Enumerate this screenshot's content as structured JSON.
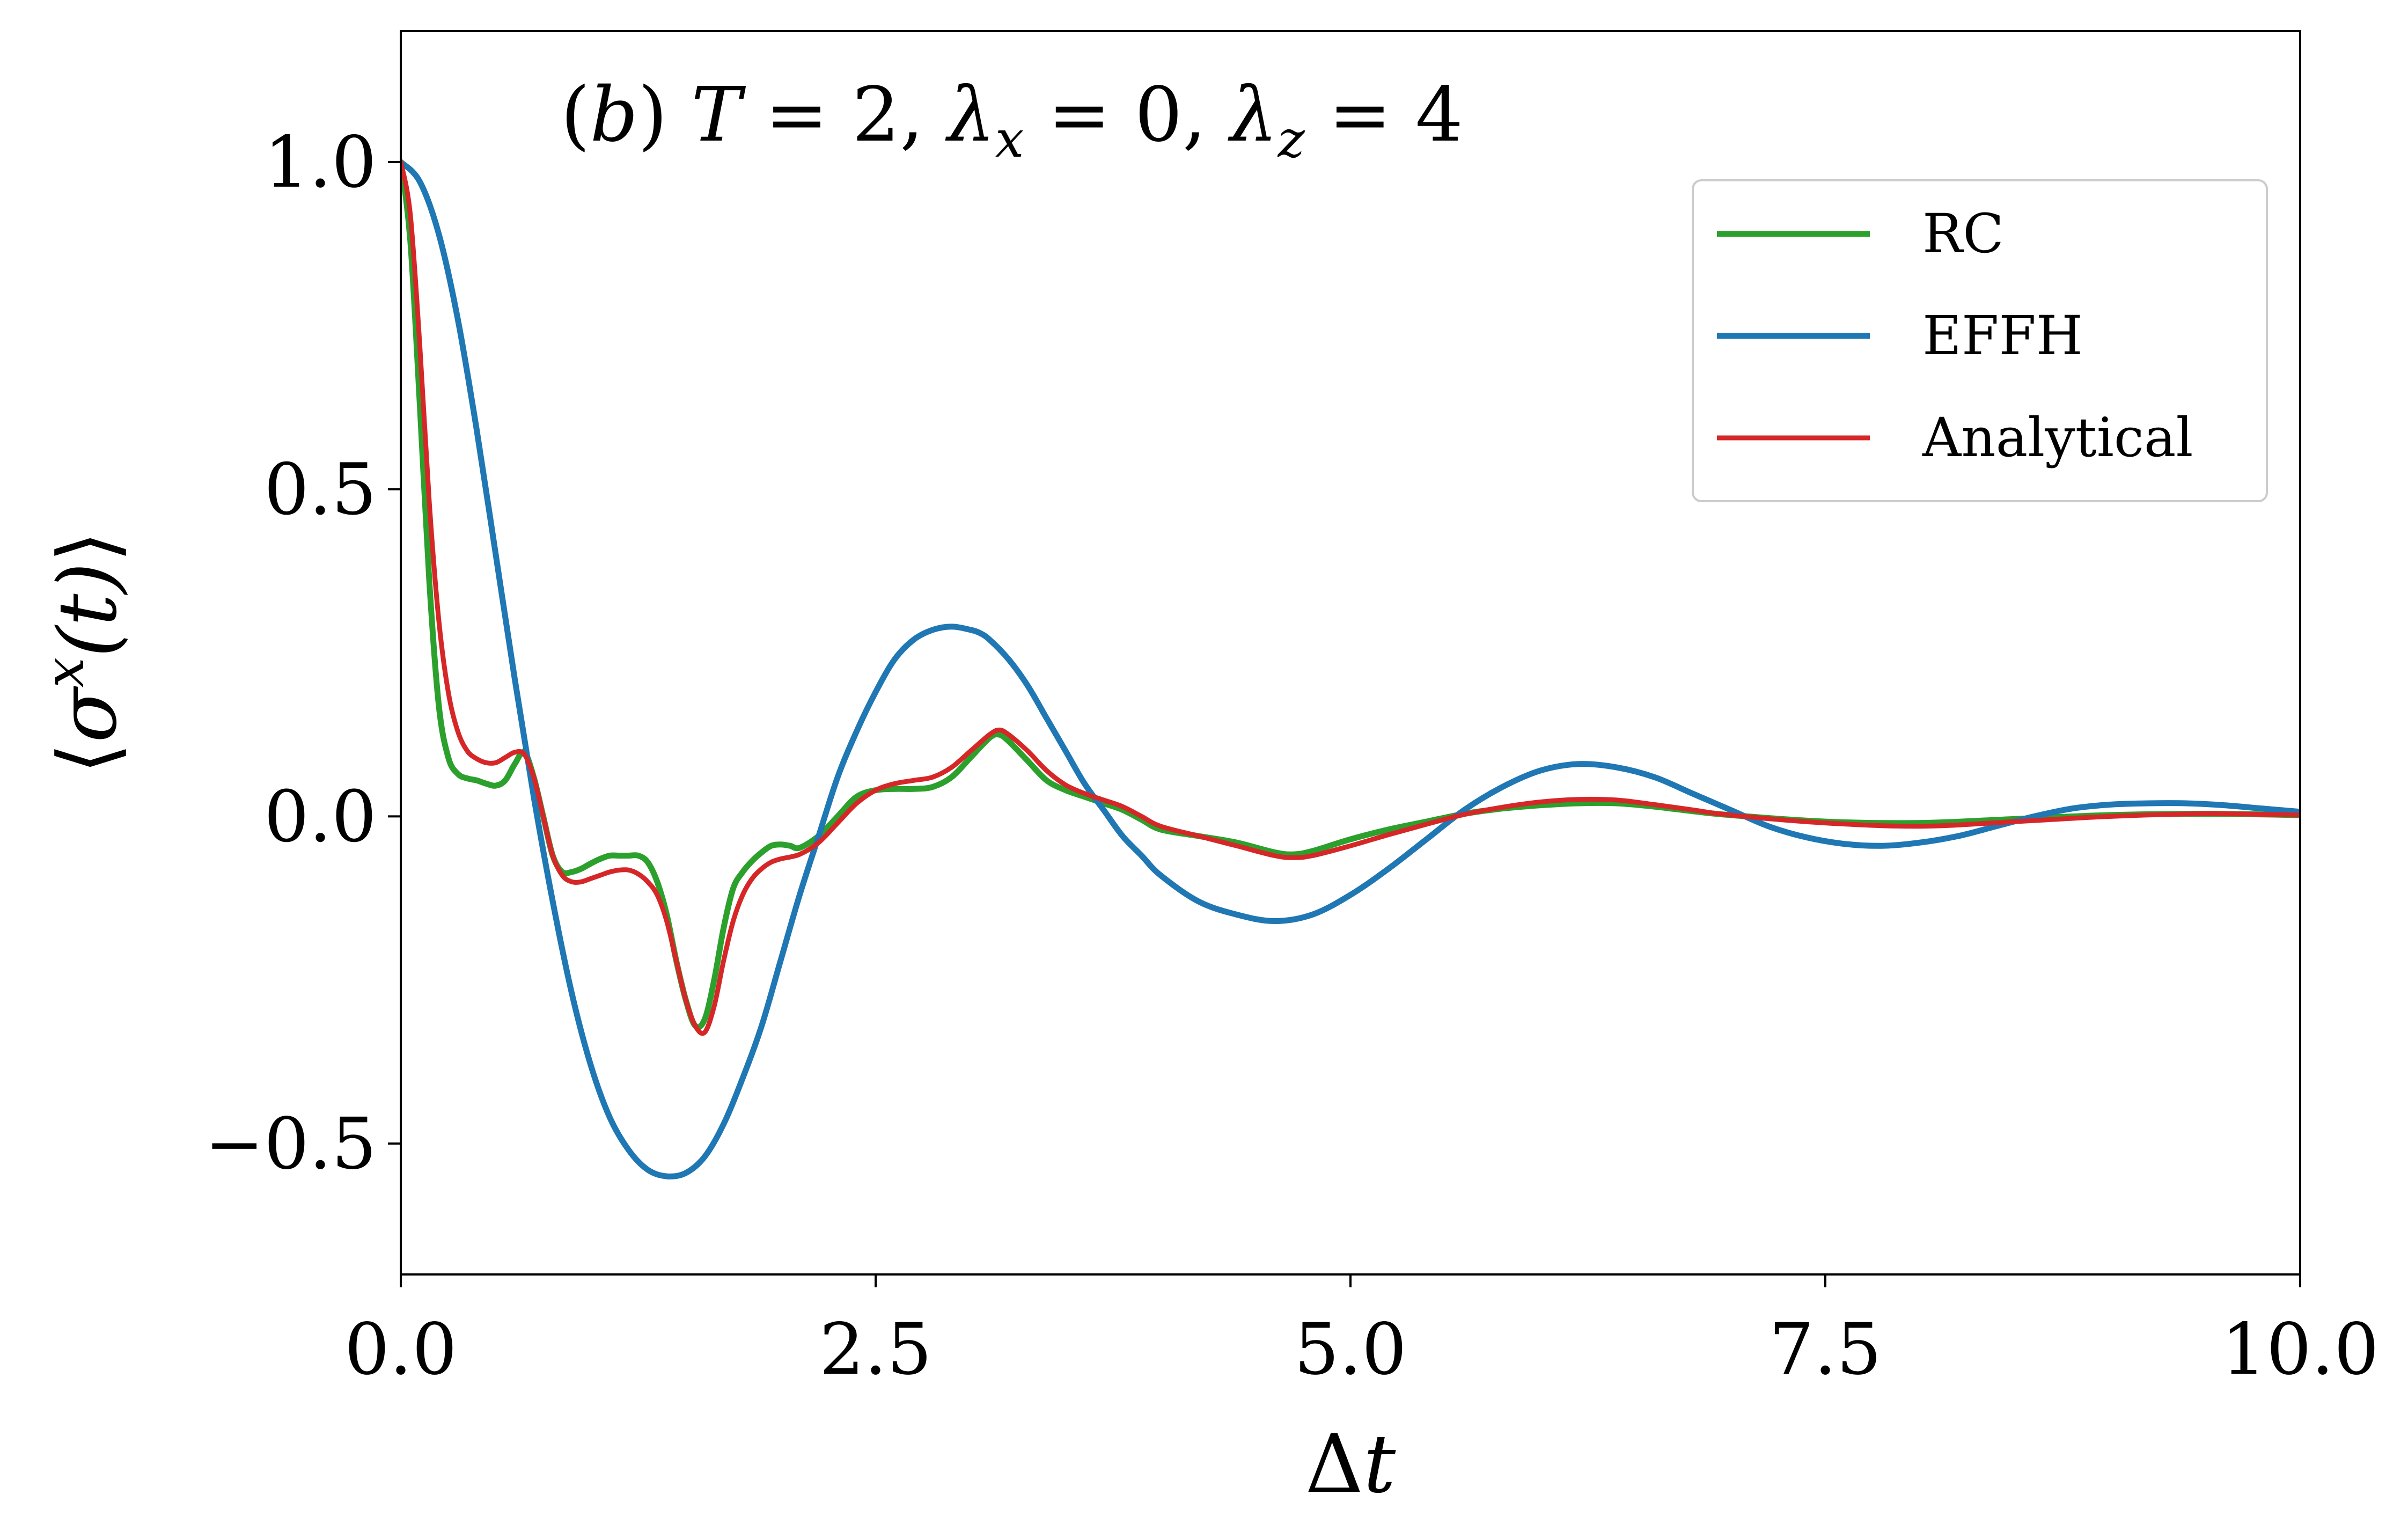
{
  "chart_data": {
    "type": "line",
    "annotation": "(b) T = 2, λx = 0, λz = 4",
    "annotation_parts": {
      "prefix": "(",
      "panel": "b",
      "middle": ") ",
      "t_var": "T",
      "t_eq": " = 2, ",
      "lx_var": "λ",
      "lx_sub": "x",
      "lx_eq": " = 0, ",
      "lz_var": "λ",
      "lz_sub": "z",
      "lz_eq": " = 4"
    },
    "xlabel": "Δt",
    "xlabel_parts": {
      "delta": "Δ",
      "var": "t"
    },
    "ylabel": "⟨σx(t)⟩",
    "ylabel_parts": {
      "open": "⟨",
      "sigma": "σ",
      "sup": "x",
      "arg": "(t)",
      "close": "⟩"
    },
    "xlim": [
      0,
      10
    ],
    "ylim": [
      -0.7,
      1.2
    ],
    "xticks": [
      0,
      2.5,
      5,
      7.5,
      10
    ],
    "xtick_labels": [
      "0.0",
      "2.5",
      "5.0",
      "7.5",
      "10.0"
    ],
    "yticks": [
      -0.5,
      0,
      0.5,
      1
    ],
    "ytick_labels": [
      "−0.5",
      "0.0",
      "0.5",
      "1.0"
    ],
    "grid": false,
    "legend_position": "upper right",
    "series": [
      {
        "name": "RC",
        "color": "#2ca02c",
        "x": [
          0,
          0.05,
          0.1,
          0.15,
          0.2,
          0.25,
          0.3,
          0.35,
          0.4,
          0.45,
          0.5,
          0.55,
          0.6,
          0.65,
          0.7,
          0.75,
          0.8,
          0.85,
          0.9,
          0.95,
          1.0,
          1.05,
          1.1,
          1.15,
          1.2,
          1.25,
          1.3,
          1.35,
          1.4,
          1.45,
          1.5,
          1.55,
          1.6,
          1.65,
          1.7,
          1.75,
          1.8,
          1.85,
          1.9,
          1.95,
          2.0,
          2.05,
          2.1,
          2.2,
          2.3,
          2.4,
          2.5,
          2.6,
          2.7,
          2.8,
          2.9,
          3.0,
          3.1,
          3.15,
          3.2,
          3.3,
          3.4,
          3.5,
          3.6,
          3.7,
          3.8,
          3.9,
          4.0,
          4.2,
          4.4,
          4.6,
          4.7,
          4.8,
          5.0,
          5.2,
          5.4,
          5.6,
          5.8,
          6.0,
          6.2,
          6.4,
          6.6,
          6.8,
          7.0,
          7.5,
          8.0,
          8.5,
          9.0,
          9.5,
          10.0
        ],
        "y": [
          1.0,
          0.88,
          0.63,
          0.36,
          0.17,
          0.09,
          0.065,
          0.058,
          0.055,
          0.05,
          0.047,
          0.055,
          0.08,
          0.098,
          0.06,
          0.0,
          -0.06,
          -0.085,
          -0.085,
          -0.08,
          -0.072,
          -0.065,
          -0.06,
          -0.06,
          -0.06,
          -0.06,
          -0.07,
          -0.1,
          -0.15,
          -0.22,
          -0.28,
          -0.32,
          -0.31,
          -0.25,
          -0.17,
          -0.11,
          -0.085,
          -0.068,
          -0.055,
          -0.045,
          -0.043,
          -0.045,
          -0.048,
          -0.03,
          0.0,
          0.03,
          0.04,
          0.042,
          0.042,
          0.045,
          0.06,
          0.09,
          0.12,
          0.125,
          0.115,
          0.085,
          0.055,
          0.04,
          0.03,
          0.02,
          0.01,
          -0.005,
          -0.02,
          -0.03,
          -0.04,
          -0.055,
          -0.058,
          -0.053,
          -0.035,
          -0.02,
          -0.008,
          0.004,
          0.012,
          0.017,
          0.02,
          0.02,
          0.015,
          0.008,
          0.002,
          -0.008,
          -0.01,
          -0.004,
          0.002,
          0.004,
          0.002
        ]
      },
      {
        "name": "EFFH",
        "color": "#1f77b4",
        "x": [
          0,
          0.1,
          0.2,
          0.3,
          0.4,
          0.5,
          0.6,
          0.7,
          0.8,
          0.9,
          1.0,
          1.1,
          1.2,
          1.3,
          1.4,
          1.5,
          1.6,
          1.7,
          1.8,
          1.9,
          2.0,
          2.1,
          2.2,
          2.3,
          2.4,
          2.5,
          2.6,
          2.7,
          2.8,
          2.9,
          3.0,
          3.05,
          3.1,
          3.2,
          3.3,
          3.4,
          3.5,
          3.6,
          3.7,
          3.8,
          3.9,
          4.0,
          4.2,
          4.4,
          4.6,
          4.8,
          5.0,
          5.2,
          5.4,
          5.6,
          5.8,
          6.0,
          6.2,
          6.4,
          6.6,
          6.8,
          7.0,
          7.2,
          7.4,
          7.6,
          7.8,
          8.0,
          8.2,
          8.4,
          8.6,
          8.8,
          9.0,
          9.2,
          9.4,
          9.6,
          9.8,
          10.0
        ],
        "y": [
          1.0,
          0.97,
          0.89,
          0.76,
          0.59,
          0.4,
          0.21,
          0.03,
          -0.13,
          -0.27,
          -0.38,
          -0.46,
          -0.51,
          -0.54,
          -0.55,
          -0.545,
          -0.52,
          -0.47,
          -0.4,
          -0.32,
          -0.22,
          -0.12,
          -0.03,
          0.06,
          0.13,
          0.19,
          0.24,
          0.27,
          0.285,
          0.29,
          0.285,
          0.28,
          0.27,
          0.24,
          0.2,
          0.15,
          0.1,
          0.05,
          0.01,
          -0.03,
          -0.06,
          -0.09,
          -0.13,
          -0.15,
          -0.16,
          -0.15,
          -0.12,
          -0.08,
          -0.035,
          0.01,
          0.045,
          0.07,
          0.08,
          0.075,
          0.06,
          0.035,
          0.01,
          -0.015,
          -0.032,
          -0.042,
          -0.045,
          -0.04,
          -0.03,
          -0.015,
          0.0,
          0.012,
          0.018,
          0.02,
          0.02,
          0.017,
          0.012,
          0.007
        ]
      },
      {
        "name": "Analytical",
        "color": "#d62728",
        "x": [
          0,
          0.05,
          0.1,
          0.15,
          0.2,
          0.25,
          0.3,
          0.35,
          0.4,
          0.45,
          0.5,
          0.55,
          0.6,
          0.65,
          0.7,
          0.75,
          0.8,
          0.85,
          0.9,
          0.95,
          1.0,
          1.05,
          1.1,
          1.15,
          1.2,
          1.25,
          1.3,
          1.35,
          1.4,
          1.45,
          1.5,
          1.55,
          1.6,
          1.65,
          1.7,
          1.75,
          1.8,
          1.85,
          1.9,
          1.95,
          2.0,
          2.1,
          2.2,
          2.3,
          2.4,
          2.5,
          2.6,
          2.7,
          2.8,
          2.9,
          3.0,
          3.1,
          3.15,
          3.2,
          3.3,
          3.4,
          3.5,
          3.6,
          3.7,
          3.8,
          3.9,
          4.0,
          4.2,
          4.4,
          4.6,
          4.7,
          4.8,
          5.0,
          5.2,
          5.4,
          5.6,
          5.8,
          6.0,
          6.2,
          6.4,
          6.6,
          6.8,
          7.0,
          7.5,
          8.0,
          8.5,
          9.0,
          9.5,
          10.0
        ],
        "y": [
          1.0,
          0.92,
          0.72,
          0.48,
          0.3,
          0.19,
          0.13,
          0.1,
          0.088,
          0.082,
          0.082,
          0.09,
          0.098,
          0.095,
          0.06,
          0.0,
          -0.06,
          -0.09,
          -0.1,
          -0.1,
          -0.095,
          -0.09,
          -0.085,
          -0.082,
          -0.082,
          -0.088,
          -0.1,
          -0.12,
          -0.16,
          -0.22,
          -0.28,
          -0.32,
          -0.33,
          -0.29,
          -0.22,
          -0.16,
          -0.12,
          -0.095,
          -0.08,
          -0.07,
          -0.065,
          -0.058,
          -0.04,
          -0.01,
          0.02,
          0.04,
          0.05,
          0.055,
          0.06,
          0.075,
          0.1,
          0.125,
          0.132,
          0.125,
          0.1,
          0.07,
          0.048,
          0.035,
          0.025,
          0.015,
          0.0,
          -0.015,
          -0.03,
          -0.045,
          -0.06,
          -0.063,
          -0.06,
          -0.045,
          -0.028,
          -0.012,
          0.003,
          0.014,
          0.022,
          0.026,
          0.025,
          0.018,
          0.01,
          0.002,
          -0.01,
          -0.015,
          -0.008,
          0.0,
          0.004,
          0.002
        ]
      }
    ]
  }
}
